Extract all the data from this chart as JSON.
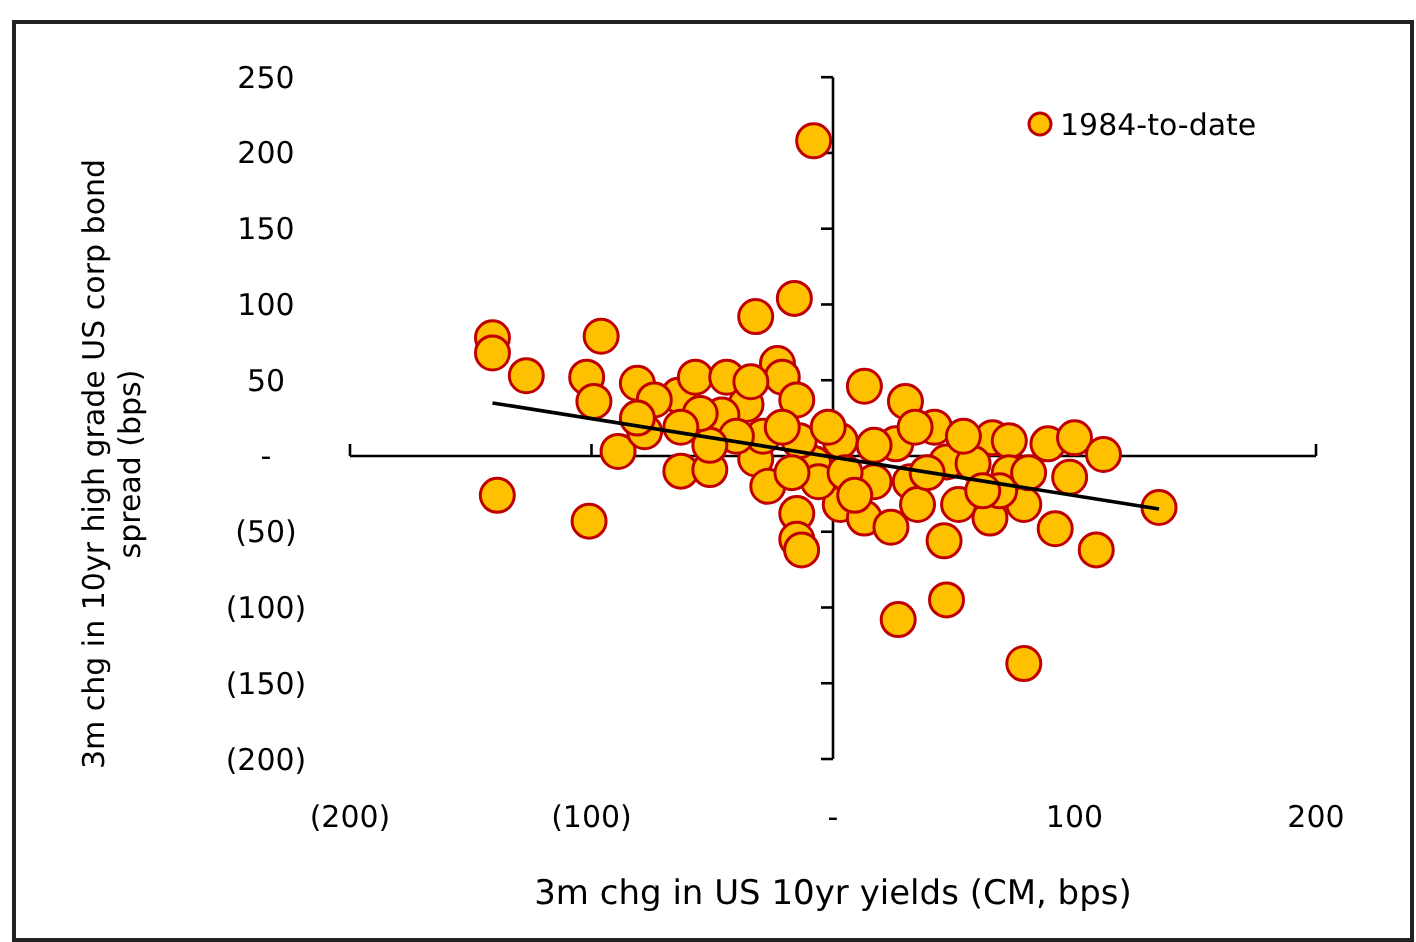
{
  "chart_data": {
    "type": "scatter",
    "xlabel": "3m chg in US 10yr yields (CM, bps)",
    "ylabel": "3m chg in 10yr high grade US corp bond spread (bps)",
    "xlim": [
      -200,
      200
    ],
    "xticks": [
      {
        "value": -200,
        "label": "(200)"
      },
      {
        "value": -100,
        "label": "(100)"
      },
      {
        "value": 0,
        "label": "-"
      },
      100,
      200
    ],
    "ylim": [
      -200,
      250
    ],
    "yticks": [
      {
        "value": -200,
        "label": "(200)"
      },
      {
        "value": -150,
        "label": "(150)"
      },
      {
        "value": -100,
        "label": "(100)"
      },
      {
        "value": -50,
        "label": "(50)"
      },
      {
        "value": 0,
        "label": "-"
      },
      50,
      100,
      150,
      200,
      250
    ],
    "legend": "top right",
    "marker": "circle",
    "series": [
      {
        "name": "1984-to-date",
        "color": "#ffc000",
        "x": [
          -8,
          -16,
          -32,
          -141,
          -141,
          -127,
          -96,
          -102,
          -99,
          -81,
          -64,
          -57,
          -44,
          -36,
          -46,
          -23,
          -21,
          -15,
          -89,
          -78,
          -63,
          -51,
          -32,
          -27,
          -15,
          -15,
          -13,
          -139,
          -101,
          13,
          30,
          3,
          26,
          42,
          66,
          73,
          89,
          100,
          112,
          98,
          73,
          92,
          109,
          135,
          47,
          52,
          46,
          65,
          79,
          47,
          27,
          79,
          3,
          13,
          17,
          32,
          35,
          -8,
          -6,
          -14,
          -17,
          -29,
          -40,
          -51,
          39,
          58,
          69,
          17,
          5,
          -2,
          34,
          54,
          81,
          62,
          24,
          9,
          -74,
          -55,
          -34,
          -81,
          -63,
          -21
        ],
        "values": [
          208,
          104,
          92,
          78,
          68,
          53,
          79,
          52,
          36,
          48,
          40,
          52,
          52,
          34,
          27,
          61,
          52,
          37,
          3,
          16,
          -10,
          -9,
          -2,
          -20,
          -38,
          -55,
          -62,
          -26,
          -43,
          46,
          36,
          10,
          8,
          19,
          12,
          10,
          8,
          12,
          1,
          -14,
          -11,
          -48,
          -62,
          -34,
          -4,
          -32,
          -56,
          -41,
          -32,
          -95,
          -108,
          -137,
          -32,
          -41,
          -17,
          -17,
          -32,
          -5,
          -17,
          10,
          -11,
          13,
          13,
          7,
          -11,
          -5,
          -23,
          7,
          -11,
          19,
          19,
          13,
          -11,
          -23,
          -47,
          -26,
          37,
          28,
          49,
          25,
          19,
          19
        ]
      },
      {
        "type": "line",
        "color": "#000000",
        "marker": "none",
        "x": [
          -141,
          135
        ],
        "values": [
          35,
          -35
        ]
      }
    ]
  }
}
